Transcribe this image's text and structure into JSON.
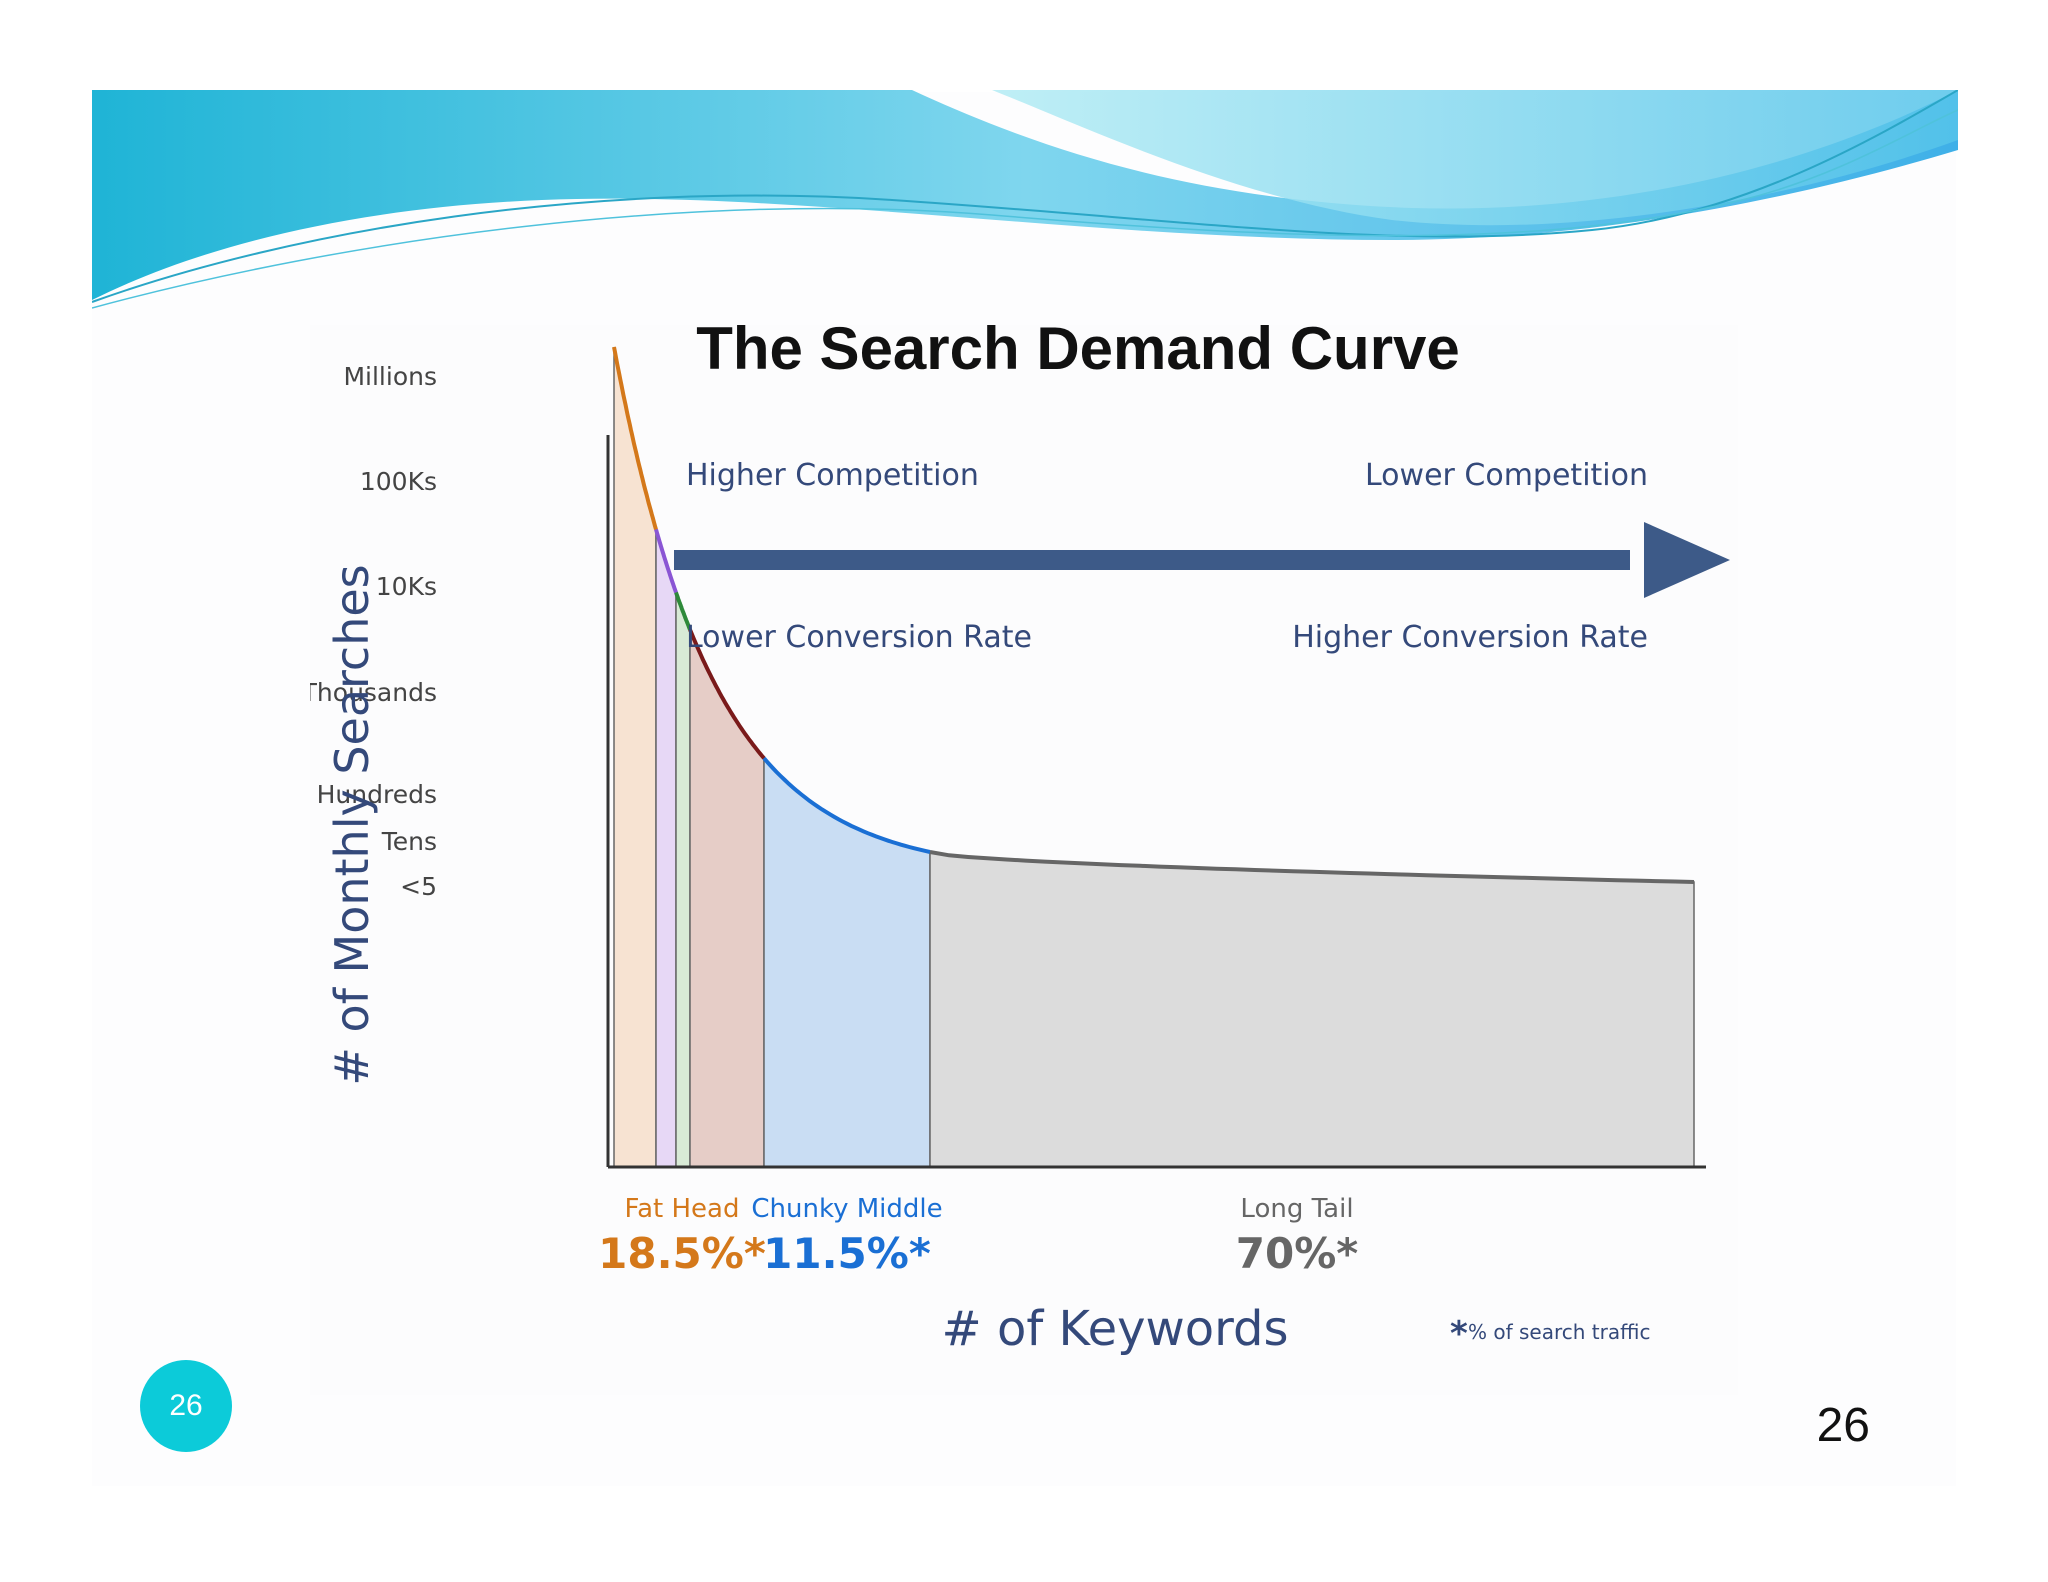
{
  "slide": {
    "badge_number": "26",
    "page_number": "26",
    "banner_colors": [
      "#1fb4d6",
      "#7fd6ee",
      "#b4ecf4"
    ]
  },
  "chart_data": {
    "type": "area",
    "title": "The Search Demand Curve",
    "xlabel": "# of Keywords",
    "ylabel": "# of Monthly Searches",
    "y_scale": "log",
    "y_ticks": [
      "Millions",
      "100Ks",
      "10Ks",
      "Thousands",
      "Hundreds",
      "Tens",
      "<5"
    ],
    "competition": {
      "left_top": "Higher Competition",
      "right_top": "Lower Competition",
      "left_bottom": "Lower Conversion Rate",
      "right_bottom": "Higher Conversion Rate",
      "arrow_color": "#3d5a88"
    },
    "segments": [
      {
        "label": "Fat Head",
        "percent": "18.5%*",
        "color": "#d4781a"
      },
      {
        "label": "Chunky Middle",
        "percent": "11.5%*",
        "color": "#1a6fd4"
      },
      {
        "label": "Long Tail",
        "percent": "70%*",
        "color": "#666666"
      }
    ],
    "footnote": {
      "star": "*",
      "text": "% of search traffic"
    }
  }
}
